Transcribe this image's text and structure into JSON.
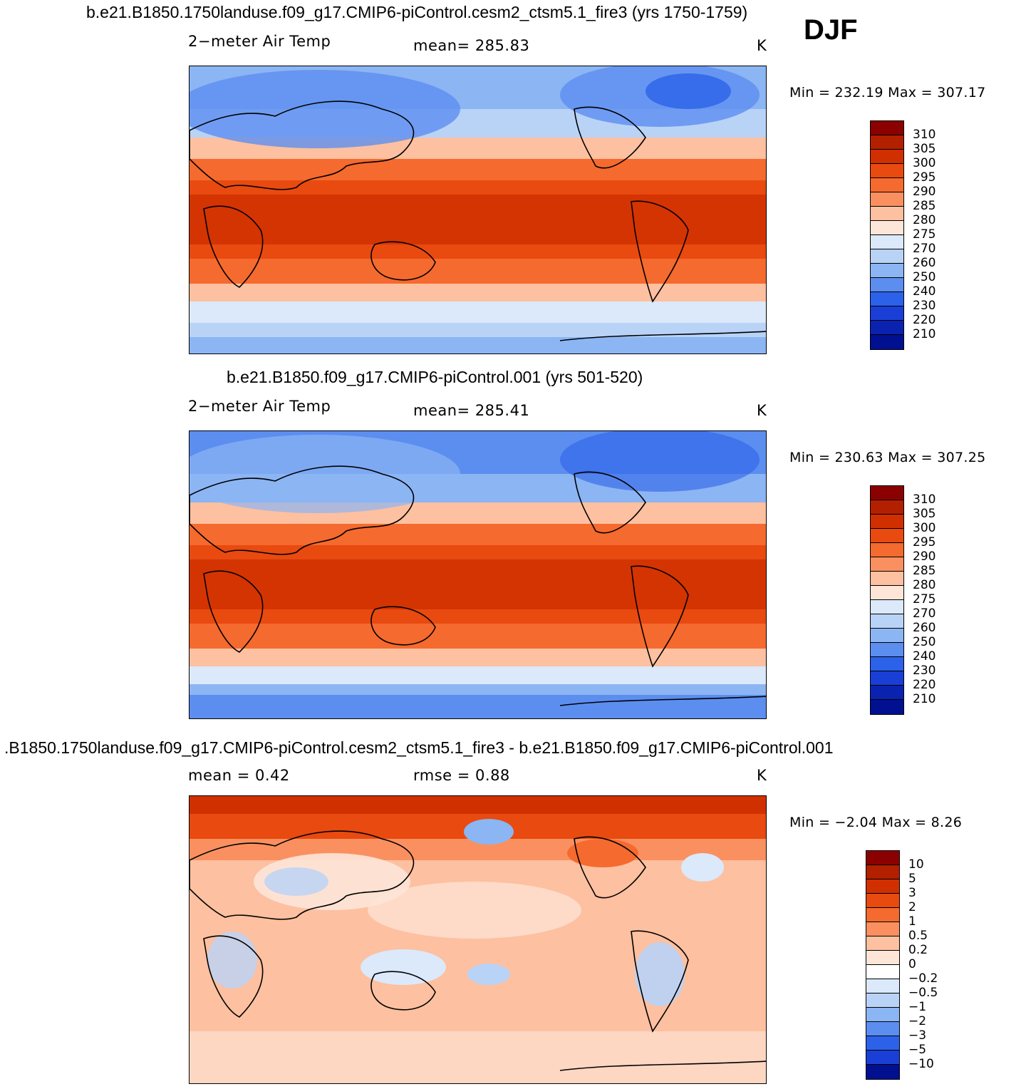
{
  "season": "DJF",
  "panels": [
    {
      "title": "b.e21.B1850.1750landuse.f09_g17.CMIP6-piControl.cesm2_ctsm5.1_fire3 (yrs 1750-1759)",
      "left_label": "2−meter Air Temp",
      "center_label": "mean= 285.83",
      "units": "K",
      "minmax": "Min = 232.19 Max = 307.17",
      "map": "absolute"
    },
    {
      "title": "b.e21.B1850.f09_g17.CMIP6-piControl.001 (yrs 501-520)",
      "left_label": "2−meter Air Temp",
      "center_label": "mean= 285.41",
      "units": "K",
      "minmax": "Min = 230.63 Max = 307.25",
      "map": "absolute"
    },
    {
      "title": ".B1850.1750landuse.f09_g17.CMIP6-piControl.cesm2_ctsm5.1_fire3 - b.e21.B1850.f09_g17.CMIP6-piControl.001",
      "left_label": "mean =    0.42",
      "center_label": "rmse =    0.88",
      "units": "K",
      "minmax": "Min =  −2.04 Max =    8.26",
      "map": "difference"
    }
  ],
  "colorbars": {
    "absolute": {
      "ticks": [
        "310",
        "305",
        "300",
        "295",
        "290",
        "285",
        "280",
        "275",
        "270",
        "260",
        "250",
        "240",
        "230",
        "220",
        "210"
      ],
      "colors": [
        "#8b0000",
        "#b22000",
        "#d03000",
        "#e84a10",
        "#f56a2e",
        "#fa9060",
        "#fdc0a0",
        "#fde6d8",
        "#dbe9fb",
        "#b9d3f7",
        "#8cb5f3",
        "#5c8ef0",
        "#2c62ea",
        "#1a3fd6",
        "#0a22b0",
        "#001090"
      ]
    },
    "difference": {
      "ticks": [
        "10",
        "5",
        "3",
        "2",
        "1",
        "0.5",
        "0.2",
        "0",
        "−0.2",
        "−0.5",
        "−1",
        "−2",
        "−3",
        "−5",
        "−10"
      ],
      "colors": [
        "#8b0000",
        "#b22000",
        "#d03000",
        "#e84a10",
        "#f56a2e",
        "#fa9060",
        "#fdc0a0",
        "#fde6d8",
        "#ffffff",
        "#dbe9fb",
        "#b9d3f7",
        "#8cb5f3",
        "#5c8ef0",
        "#2c62ea",
        "#1a3fd6",
        "#001090"
      ]
    }
  }
}
